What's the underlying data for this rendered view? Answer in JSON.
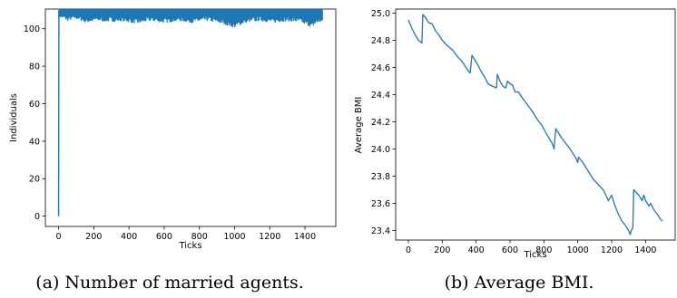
{
  "chart_data": [
    {
      "type": "line",
      "caption": "(a) Number of married agents.",
      "xlabel": "Ticks",
      "ylabel": "Individuals",
      "xlim": [
        -75,
        1575
      ],
      "ylim": [
        -5.5,
        110.5
      ],
      "xticks": [
        0,
        200,
        400,
        600,
        800,
        1000,
        1200,
        1400
      ],
      "yticks": [
        0,
        20,
        40,
        60,
        80,
        100
      ],
      "grid": false,
      "color": "#1f77b4",
      "series": [
        {
          "start": [
            [
              0,
              0
            ],
            [
              2,
              110
            ]
          ],
          "x_range": [
            2,
            1500
          ],
          "upper_band": 110,
          "lower_envelope": [
            [
              2,
              106
            ],
            [
              50,
              104
            ],
            [
              100,
              105
            ],
            [
              160,
              103
            ],
            [
              220,
              104
            ],
            [
              300,
              103.5
            ],
            [
              360,
              104
            ],
            [
              450,
              102.5
            ],
            [
              520,
              104
            ],
            [
              600,
              103
            ],
            [
              680,
              104
            ],
            [
              760,
              103
            ],
            [
              850,
              104
            ],
            [
              930,
              102.5
            ],
            [
              1000,
              100.5
            ],
            [
              1060,
              103
            ],
            [
              1140,
              104
            ],
            [
              1220,
              103
            ],
            [
              1300,
              104
            ],
            [
              1380,
              103
            ],
            [
              1440,
              100.5
            ],
            [
              1470,
              103
            ],
            [
              1500,
              103
            ]
          ]
        }
      ]
    },
    {
      "type": "line",
      "caption": "(b) Average BMI.",
      "xlabel": "Ticks",
      "ylabel": "Average BMI",
      "xlim": [
        -75,
        1575
      ],
      "ylim": [
        23.33,
        25.03
      ],
      "xticks": [
        0,
        200,
        400,
        600,
        800,
        1000,
        1200,
        1400
      ],
      "yticks": [
        23.4,
        23.6,
        23.8,
        24.0,
        24.2,
        24.4,
        24.6,
        24.8,
        25.0
      ],
      "grid": false,
      "color": "#1f77b4",
      "series": [
        {
          "x": [
            0,
            20,
            40,
            60,
            80,
            85,
            100,
            120,
            140,
            160,
            180,
            200,
            230,
            260,
            290,
            320,
            350,
            365,
            375,
            390,
            410,
            430,
            450,
            470,
            500,
            520,
            525,
            540,
            560,
            575,
            585,
            600,
            615,
            630,
            650,
            670,
            700,
            730,
            760,
            790,
            820,
            850,
            860,
            870,
            900,
            930,
            960,
            990,
            1000,
            1005,
            1030,
            1060,
            1090,
            1120,
            1150,
            1170,
            1180,
            1200,
            1220,
            1240,
            1260,
            1280,
            1300,
            1310,
            1315,
            1325,
            1330,
            1345,
            1360,
            1380,
            1390,
            1400,
            1420,
            1430,
            1450,
            1470,
            1490,
            1500
          ],
          "y": [
            24.95,
            24.89,
            24.84,
            24.8,
            24.78,
            24.99,
            24.97,
            24.93,
            24.92,
            24.87,
            24.84,
            24.8,
            24.76,
            24.73,
            24.68,
            24.64,
            24.58,
            24.56,
            24.69,
            24.66,
            24.62,
            24.57,
            24.53,
            24.48,
            24.46,
            24.45,
            24.55,
            24.5,
            24.46,
            24.45,
            24.5,
            24.48,
            24.47,
            24.42,
            24.42,
            24.38,
            24.33,
            24.28,
            24.22,
            24.17,
            24.1,
            24.04,
            24.0,
            24.15,
            24.09,
            24.04,
            23.99,
            23.93,
            23.9,
            23.94,
            23.9,
            23.84,
            23.78,
            23.74,
            23.7,
            23.65,
            23.62,
            23.66,
            23.58,
            23.52,
            23.47,
            23.44,
            23.4,
            23.37,
            23.4,
            23.42,
            23.7,
            23.68,
            23.66,
            23.62,
            23.66,
            23.62,
            23.58,
            23.6,
            23.55,
            23.52,
            23.48,
            23.47
          ]
        }
      ]
    }
  ]
}
